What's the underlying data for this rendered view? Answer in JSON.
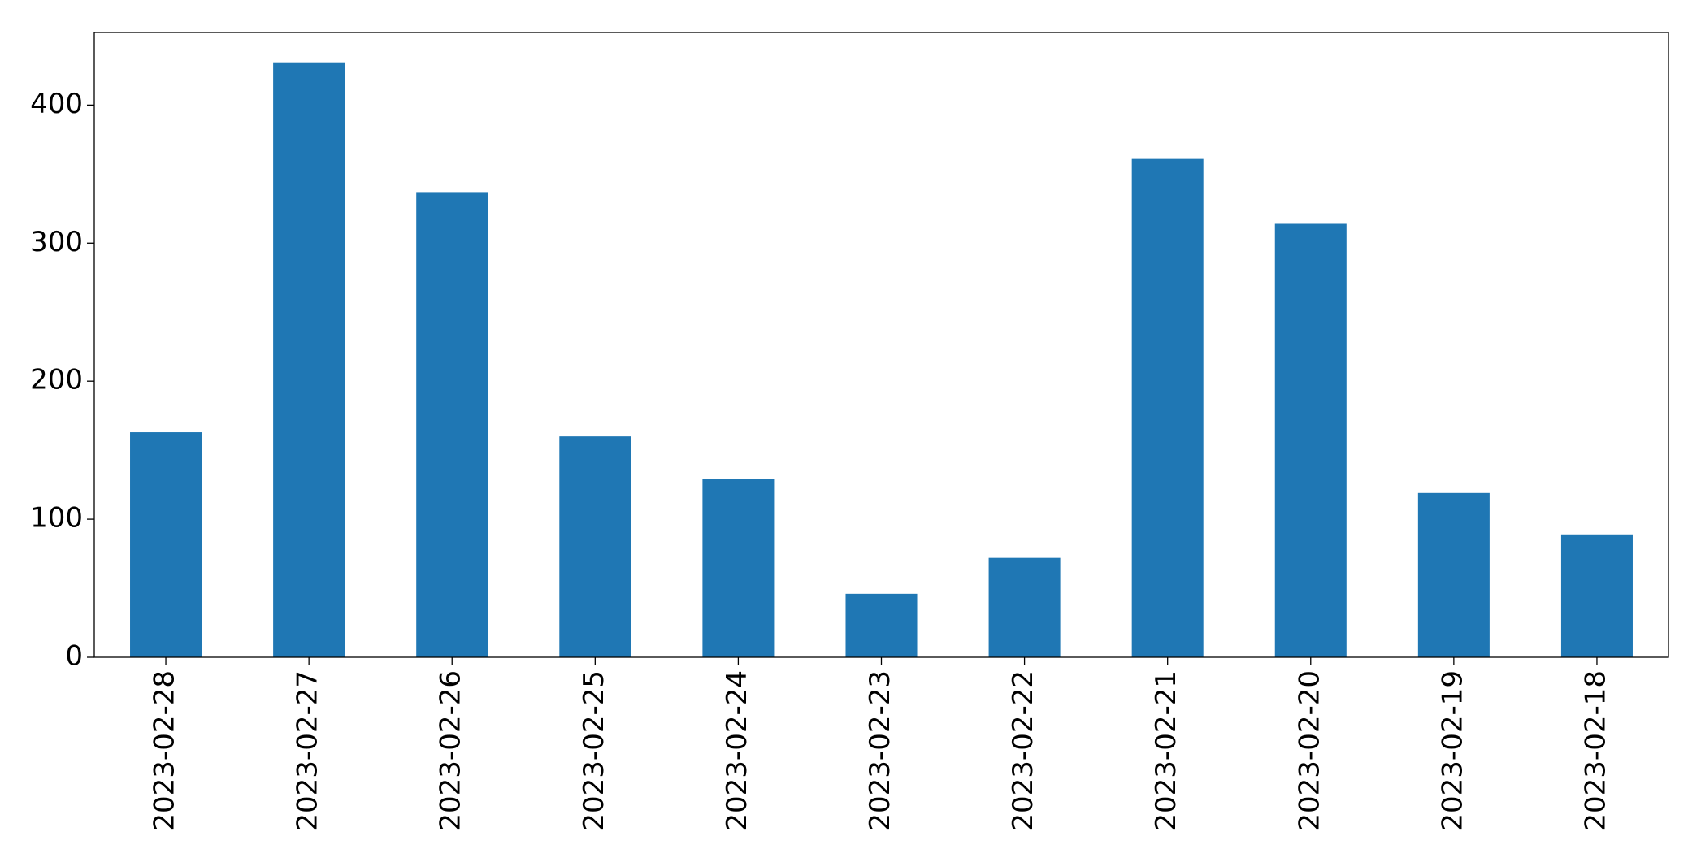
{
  "chart_data": {
    "type": "bar",
    "categories": [
      "2023-02-28",
      "2023-02-27",
      "2023-02-26",
      "2023-02-25",
      "2023-02-24",
      "2023-02-23",
      "2023-02-22",
      "2023-02-21",
      "2023-02-20",
      "2023-02-19",
      "2023-02-18"
    ],
    "values": [
      163,
      431,
      337,
      160,
      129,
      46,
      72,
      361,
      314,
      119,
      89
    ],
    "color": "#1f77b4",
    "ylim": [
      0,
      452.6
    ],
    "yticks": [
      0,
      100,
      200,
      300,
      400
    ],
    "grid": false
  }
}
